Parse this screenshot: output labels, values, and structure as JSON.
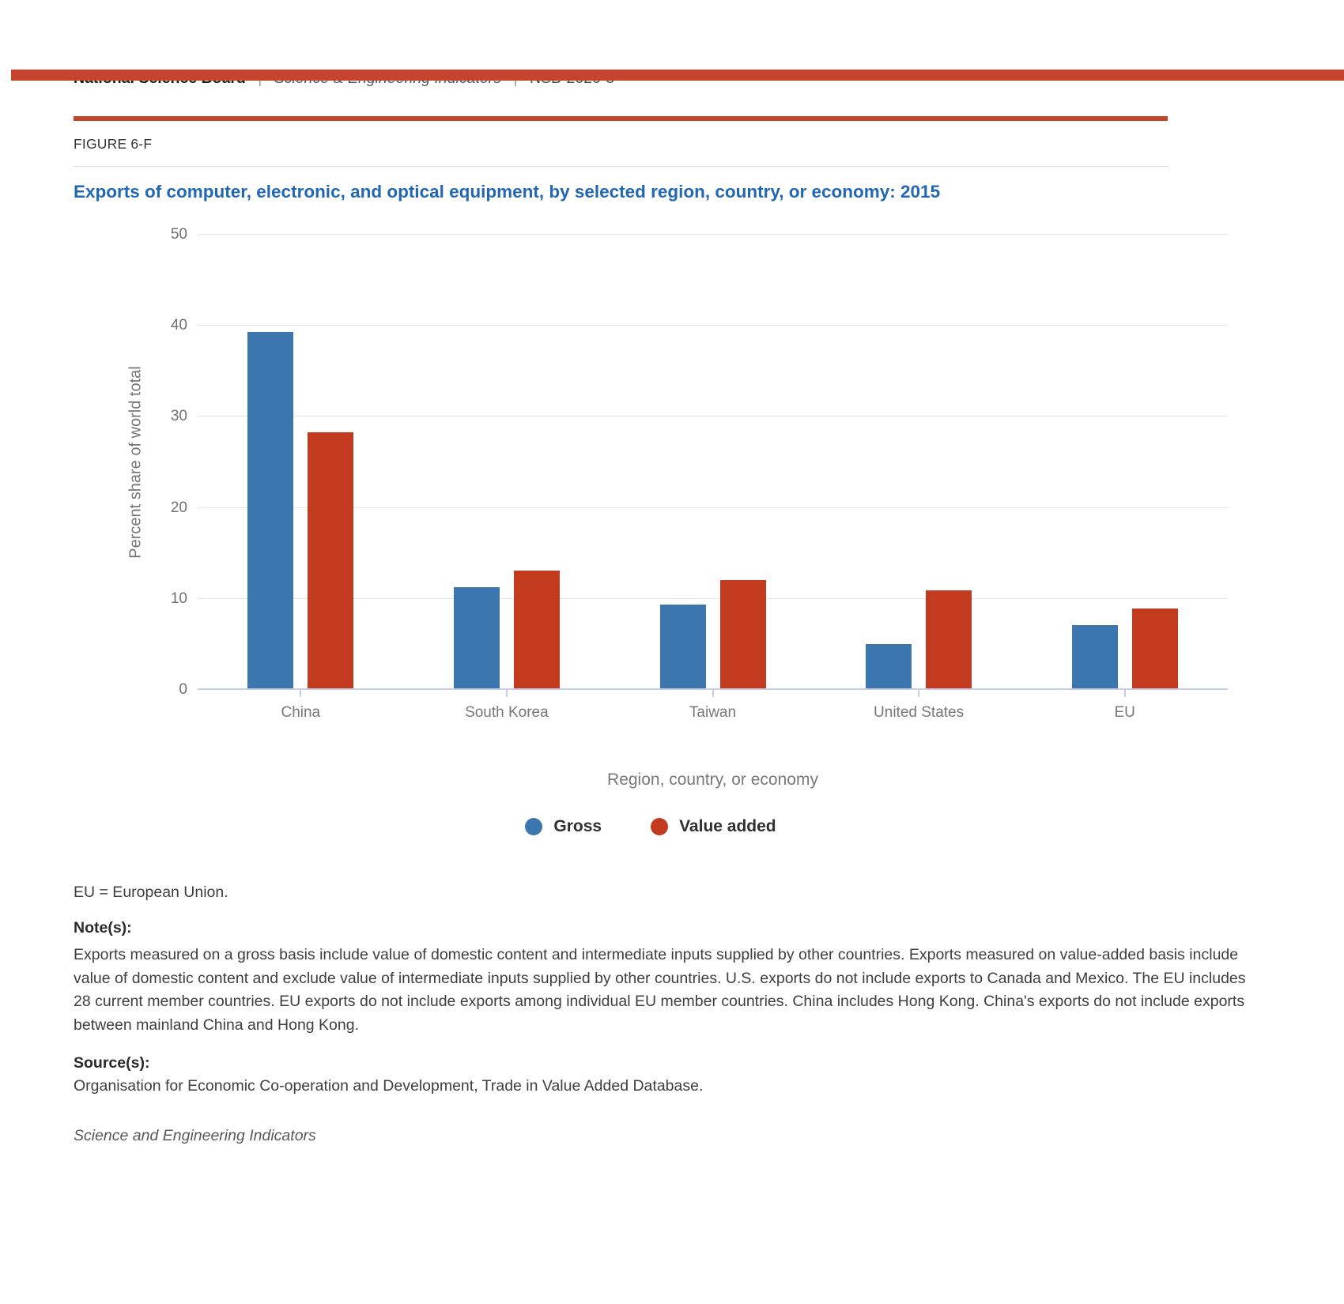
{
  "header": {
    "org": "National Science Board",
    "separator": "|",
    "publication": "Science & Engineering Indicators",
    "report_id": "NSB-2020-5"
  },
  "figure": {
    "label": "FIGURE 6-F",
    "title": "Exports of computer, electronic, and optical equipment, by selected region, country, or economy: 2015"
  },
  "chart_data": {
    "type": "bar",
    "title": "Exports of computer, electronic, and optical equipment, by selected region, country, or economy: 2015",
    "categories": [
      "China",
      "South Korea",
      "Taiwan",
      "United States",
      "EU"
    ],
    "series": [
      {
        "name": "Gross",
        "color": "#3b77ae",
        "values": [
          39.3,
          11.3,
          9.4,
          5.0,
          7.1
        ]
      },
      {
        "name": "Value added",
        "color": "#c23b1e",
        "values": [
          28.3,
          13.1,
          12.1,
          10.9,
          8.9
        ]
      }
    ],
    "xlabel": "Region, country, or economy",
    "ylabel": "Percent share of world total",
    "ylim": [
      0,
      50
    ],
    "yticks": [
      0,
      10,
      20,
      30,
      40,
      50
    ],
    "grid": true,
    "legend_position": "bottom"
  },
  "notes": {
    "abbreviation": "EU = European Union.",
    "notes_label": "Note(s):",
    "notes_text": "Exports measured on a gross basis include value of domestic content and intermediate inputs supplied by other countries. Exports measured on value-added basis include value of domestic content and exclude value of intermediate inputs supplied by other countries. U.S. exports do not include exports to Canada and Mexico. The EU includes 28 current member countries. EU exports do not include exports among individual EU member countries. China includes Hong Kong. China's exports do not include exports between mainland China and Hong Kong.",
    "source_label": "Source(s):",
    "source_text": "Organisation for Economic Co-operation and Development, Trade in Value Added Database.",
    "footer": "Science and Engineering Indicators"
  },
  "colors": {
    "accent_red": "#c5452c",
    "title_blue": "#2267b3",
    "bar_blue": "#3b77ae",
    "bar_red": "#c23b1e"
  }
}
